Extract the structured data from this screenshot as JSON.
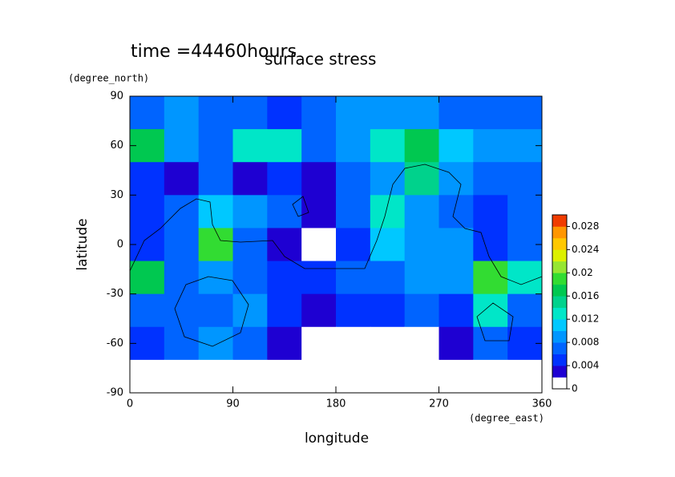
{
  "chart_data": {
    "type": "contour",
    "subtitle": "time =44460hours",
    "title": "surface stress",
    "x_label": "longitude",
    "x_unit": "(degree_east)",
    "y_label": "latitude",
    "y_unit": "(degree_north)",
    "x": [
      15,
      45,
      75,
      105,
      135,
      165,
      195,
      225,
      255,
      285,
      315,
      345
    ],
    "y": [
      80,
      60,
      40,
      20,
      0,
      -20,
      -40,
      -60,
      -80
    ],
    "z": [
      [
        0.006,
        0.008,
        0.006,
        0.006,
        0.005,
        0.006,
        0.008,
        0.008,
        0.008,
        0.006,
        0.006,
        0.006
      ],
      [
        0.016,
        0.008,
        0.006,
        0.012,
        0.012,
        0.006,
        0.008,
        0.012,
        0.016,
        0.01,
        0.008,
        0.008
      ],
      [
        0.004,
        0.002,
        0.006,
        0.002,
        0.004,
        0.002,
        0.006,
        0.008,
        0.014,
        0.008,
        0.006,
        0.006
      ],
      [
        0.004,
        0.006,
        0.01,
        0.008,
        0.006,
        0.002,
        0.006,
        0.012,
        0.008,
        0.006,
        0.004,
        0.006
      ],
      [
        0.004,
        0.006,
        0.018,
        0.006,
        0.002,
        0.001,
        0.004,
        0.01,
        0.008,
        0.008,
        0.004,
        0.006
      ],
      [
        0.016,
        0.006,
        0.008,
        0.006,
        0.004,
        0.004,
        0.006,
        0.006,
        0.008,
        0.008,
        0.018,
        0.012
      ],
      [
        0.006,
        0.006,
        0.006,
        0.008,
        0.004,
        0.002,
        0.004,
        0.004,
        0.006,
        0.004,
        0.012,
        0.006
      ],
      [
        0.004,
        0.006,
        0.008,
        0.006,
        0.002,
        0.001,
        0.001,
        0.001,
        0.001,
        0.002,
        0.006,
        0.004
      ],
      [
        0,
        0,
        0,
        0,
        0,
        0,
        0,
        0,
        0,
        0,
        0,
        0
      ]
    ],
    "xlim": [
      0,
      360
    ],
    "ylim": [
      -90,
      90
    ],
    "xticks": [
      0,
      90,
      180,
      270,
      360
    ],
    "yticks": [
      -90,
      -60,
      -30,
      0,
      30,
      60,
      90
    ],
    "colorbar": {
      "lim": [
        0,
        0.03
      ],
      "ticks": [
        0,
        0.004,
        0.008,
        0.012,
        0.016,
        0.02,
        0.024,
        0.028
      ],
      "colors": [
        "#ffffff",
        "#1e00d2",
        "#0032ff",
        "#0064ff",
        "#0096ff",
        "#00c8ff",
        "#00e6c8",
        "#00d28c",
        "#00c850",
        "#32dc32",
        "#96e632",
        "#dcf000",
        "#ffc800",
        "#ff9600",
        "#f03c00"
      ]
    }
  }
}
